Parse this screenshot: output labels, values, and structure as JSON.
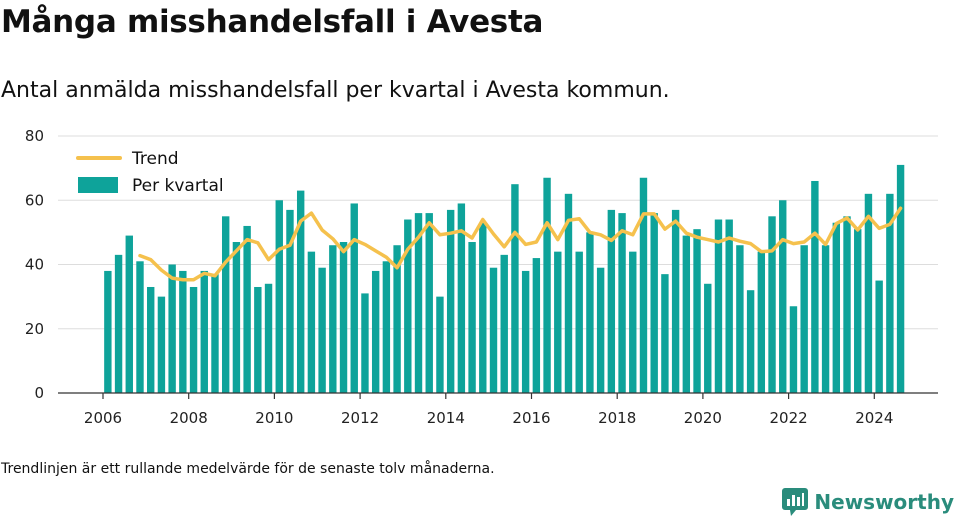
{
  "title": "Många misshandelsfall i Avesta",
  "subtitle": "Antal anmälda misshandelsfall per kvartal i Avesta kommun.",
  "footnote": "Trendlinjen är ett rullande medelvärde för de senaste tolv månaderna.",
  "brand": {
    "name": "Newsworthy",
    "color": "#2a8c7c",
    "icon": "newsworthy-logo-icon"
  },
  "colors": {
    "bar": "#0ea39a",
    "trend": "#f5c14d",
    "grid": "#dddddd",
    "axis": "#333333"
  },
  "chart_data": {
    "type": "bar",
    "start_year": 2006,
    "x_ticks": [
      "2006",
      "2008",
      "2010",
      "2012",
      "2014",
      "2016",
      "2018",
      "2020",
      "2022",
      "2024"
    ],
    "y_ticks": [
      0,
      20,
      40,
      60,
      80
    ],
    "ylim": [
      0,
      80
    ],
    "grid": true,
    "legend_position": "top-left",
    "series": [
      {
        "name": "Per kvartal",
        "type": "bar",
        "values": [
          38,
          43,
          49,
          41,
          33,
          30,
          40,
          38,
          33,
          38,
          37,
          55,
          47,
          52,
          33,
          34,
          60,
          57,
          63,
          44,
          39,
          46,
          47,
          59,
          31,
          38,
          41,
          46,
          54,
          56,
          56,
          30,
          57,
          59,
          47,
          53,
          39,
          43,
          65,
          38,
          42,
          67,
          44,
          62,
          44,
          50,
          39,
          57,
          56,
          44,
          67,
          56,
          37,
          57,
          49,
          51,
          34,
          54,
          54,
          46,
          32,
          44,
          55,
          60,
          27,
          46,
          66,
          46,
          53,
          55,
          51,
          62,
          35,
          62,
          71
        ]
      },
      {
        "name": "Trend",
        "type": "line",
        "values": [
          null,
          null,
          null,
          42.75,
          41.5,
          38.25,
          35.75,
          35.25,
          35.25,
          37.25,
          36.5,
          40.75,
          44.25,
          47.75,
          46.75,
          41.5,
          44.75,
          46,
          53.5,
          56,
          50.75,
          48,
          44,
          47.75,
          46.25,
          44.25,
          42.25,
          39,
          44.75,
          48.5,
          53,
          49.25,
          49.75,
          50.5,
          48.25,
          54,
          49.5,
          45.5,
          50,
          46.25,
          47,
          53,
          47.75,
          53.75,
          54.25,
          50,
          49.25,
          47.5,
          50.5,
          49.25,
          55.75,
          55.75,
          51,
          53.5,
          49.75,
          48.5,
          47.75,
          47,
          48.25,
          47.25,
          46.5,
          44,
          44.25,
          47.75,
          46.5,
          47,
          49.75,
          46.25,
          52.75,
          54.5,
          50.75,
          55,
          51.25,
          52.5,
          57.5
        ]
      }
    ]
  }
}
